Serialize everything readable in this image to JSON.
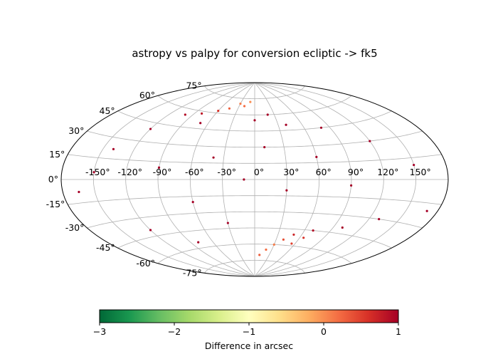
{
  "chart_data": {
    "type": "scatter",
    "projection": "aitoff",
    "title": "astropy vs palpy for conversion ecliptic -> fk5",
    "grid": true,
    "lon_tick_labels": [
      "-150°",
      "-120°",
      "-90°",
      "-60°",
      "-30°",
      "0°",
      "30°",
      "60°",
      "90°",
      "120°",
      "150°"
    ],
    "lat_tick_labels": [
      "75°",
      "60°",
      "45°",
      "30°",
      "15°",
      "0°",
      "-15°",
      "-30°",
      "-45°",
      "-60°",
      "-75°"
    ],
    "colorbar": {
      "label": "Difference in arcsec",
      "range": [
        -3,
        1
      ],
      "tick_labels": [
        "−3",
        "−2",
        "−1",
        "0",
        "1"
      ],
      "colormap": "RdYlGn_r",
      "colors": [
        "#006837",
        "#1a9850",
        "#66bd63",
        "#a6d96a",
        "#d9ef8b",
        "#ffffbf",
        "#fee08b",
        "#fdae61",
        "#f46d43",
        "#d73027",
        "#a50026"
      ]
    },
    "point_size": 1.6,
    "points": [
      {
        "lon": -150,
        "lat": 5,
        "diff": 1.0
      },
      {
        "lon": -140,
        "lat": 22,
        "diff": 1.0
      },
      {
        "lon": -165,
        "lat": -8,
        "diff": 1.0
      },
      {
        "lon": -120,
        "lat": 40,
        "diff": 1.0
      },
      {
        "lon": -100,
        "lat": 55,
        "diff": 0.9
      },
      {
        "lon": -60,
        "lat": 62,
        "diff": 0.6
      },
      {
        "lon": -45,
        "lat": 65,
        "diff": 0.3
      },
      {
        "lon": -30,
        "lat": 70,
        "diff": 0.1
      },
      {
        "lon": -20,
        "lat": 68,
        "diff": 0.2
      },
      {
        "lon": -10,
        "lat": 72,
        "diff": 0.0
      },
      {
        "lon": -80,
        "lat": 58,
        "diff": 0.8
      },
      {
        "lon": -70,
        "lat": 50,
        "diff": 1.0
      },
      {
        "lon": 0,
        "lat": 55,
        "diff": 1.0
      },
      {
        "lon": 20,
        "lat": 60,
        "diff": 1.0
      },
      {
        "lon": 40,
        "lat": 50,
        "diff": 1.0
      },
      {
        "lon": 80,
        "lat": 45,
        "diff": 1.0
      },
      {
        "lon": 120,
        "lat": 30,
        "diff": 1.0
      },
      {
        "lon": 150,
        "lat": 10,
        "diff": 1.0
      },
      {
        "lon": 170,
        "lat": -20,
        "diff": 1.0
      },
      {
        "lon": 130,
        "lat": -30,
        "diff": 1.0
      },
      {
        "lon": 100,
        "lat": -40,
        "diff": 1.0
      },
      {
        "lon": 70,
        "lat": -45,
        "diff": 0.9
      },
      {
        "lon": 50,
        "lat": -50,
        "diff": 0.7
      },
      {
        "lon": 40,
        "lat": -55,
        "diff": 0.4
      },
      {
        "lon": 30,
        "lat": -60,
        "diff": 0.1
      },
      {
        "lon": 20,
        "lat": -65,
        "diff": 0.2
      },
      {
        "lon": 10,
        "lat": -70,
        "diff": 0.3
      },
      {
        "lon": 55,
        "lat": -58,
        "diff": 0.5
      },
      {
        "lon": 65,
        "lat": -52,
        "diff": 0.6
      },
      {
        "lon": -30,
        "lat": -40,
        "diff": 1.0
      },
      {
        "lon": -60,
        "lat": -20,
        "diff": 1.0
      },
      {
        "lon": -90,
        "lat": 10,
        "diff": 1.0
      },
      {
        "lon": 30,
        "lat": -10,
        "diff": 1.0
      },
      {
        "lon": 60,
        "lat": 20,
        "diff": 1.0
      },
      {
        "lon": -10,
        "lat": 0,
        "diff": 1.0
      },
      {
        "lon": 90,
        "lat": -5,
        "diff": 1.0
      },
      {
        "lon": -120,
        "lat": -40,
        "diff": 1.0
      },
      {
        "lon": -80,
        "lat": -55,
        "diff": 1.0
      },
      {
        "lon": 10,
        "lat": 30,
        "diff": 1.0
      },
      {
        "lon": -40,
        "lat": 20,
        "diff": 1.0
      }
    ]
  }
}
